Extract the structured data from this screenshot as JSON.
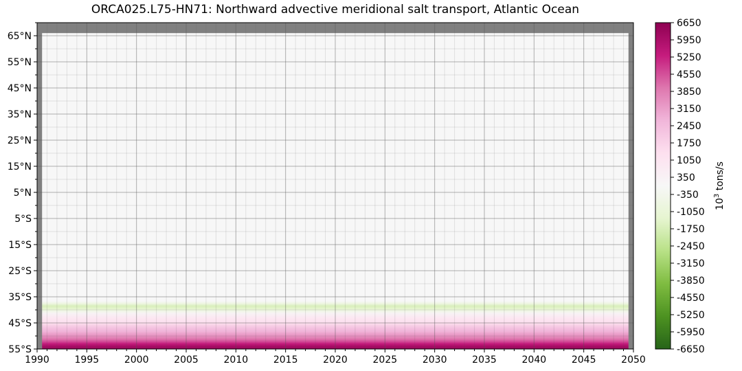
{
  "chart_data": {
    "type": "heatmap",
    "title": "ORCA025.L75-HN71: Northward advective meridional salt transport, Atlantic Ocean",
    "xlabel": "",
    "ylabel": "",
    "xlim": [
      1990,
      2050
    ],
    "ylim": [
      -55,
      70
    ],
    "data_extent_x": [
      1990.5,
      2049.5
    ],
    "x_ticks": [
      1990,
      1995,
      2000,
      2005,
      2010,
      2015,
      2020,
      2025,
      2030,
      2035,
      2040,
      2045,
      2050
    ],
    "x_tick_labels": [
      "1990",
      "1995",
      "2000",
      "2005",
      "2010",
      "2015",
      "2020",
      "2025",
      "2030",
      "2035",
      "2040",
      "2045",
      "2050"
    ],
    "y_ticks": [
      -55,
      -45,
      -35,
      -25,
      -15,
      -5,
      5,
      15,
      25,
      35,
      45,
      55,
      65
    ],
    "y_tick_labels": [
      "55°S",
      "45°S",
      "35°S",
      "25°S",
      "15°S",
      "5°S",
      "5°N",
      "15°N",
      "25°N",
      "35°N",
      "45°N",
      "55°N",
      "65°N"
    ],
    "grid": true,
    "latitude_profile": [
      {
        "lat": 66,
        "value": 0
      },
      {
        "lat": -36,
        "value": 0
      },
      {
        "lat": -37,
        "value": -700
      },
      {
        "lat": -38,
        "value": -1700
      },
      {
        "lat": -39,
        "value": -1400
      },
      {
        "lat": -40,
        "value": -500
      },
      {
        "lat": -41,
        "value": 300
      },
      {
        "lat": -42,
        "value": 700
      },
      {
        "lat": -43,
        "value": 1000
      },
      {
        "lat": -44,
        "value": 1200
      },
      {
        "lat": -45,
        "value": 1500
      },
      {
        "lat": -46,
        "value": 2000
      },
      {
        "lat": -47,
        "value": 2400
      },
      {
        "lat": -48,
        "value": 2700
      },
      {
        "lat": -49,
        "value": 3100
      },
      {
        "lat": -50,
        "value": 3500
      },
      {
        "lat": -51,
        "value": 4000
      },
      {
        "lat": -52,
        "value": 4600
      },
      {
        "lat": -53,
        "value": 5400
      },
      {
        "lat": -54,
        "value": 6100
      },
      {
        "lat": -55,
        "value": 6300
      }
    ],
    "colorbar": {
      "label_base": "10",
      "label_exp": "3",
      "label_unit": " tons/s",
      "min": -6650,
      "max": 6650,
      "tick_labels": [
        "6650",
        "5950",
        "5250",
        "4550",
        "3850",
        "3150",
        "2450",
        "1750",
        "1050",
        "350",
        "-350",
        "-1050",
        "-1750",
        "-2450",
        "-3150",
        "-3850",
        "-4550",
        "-5250",
        "-5950",
        "-6650"
      ],
      "colors": [
        "#276419",
        "#4d9221",
        "#7fbc41",
        "#b8e186",
        "#e6f5d0",
        "#f7f7f7",
        "#fde0ef",
        "#f1b6da",
        "#de77ae",
        "#c51b7d",
        "#8e0152"
      ]
    },
    "missing_color": "#808080",
    "grid_color": "#555555"
  }
}
